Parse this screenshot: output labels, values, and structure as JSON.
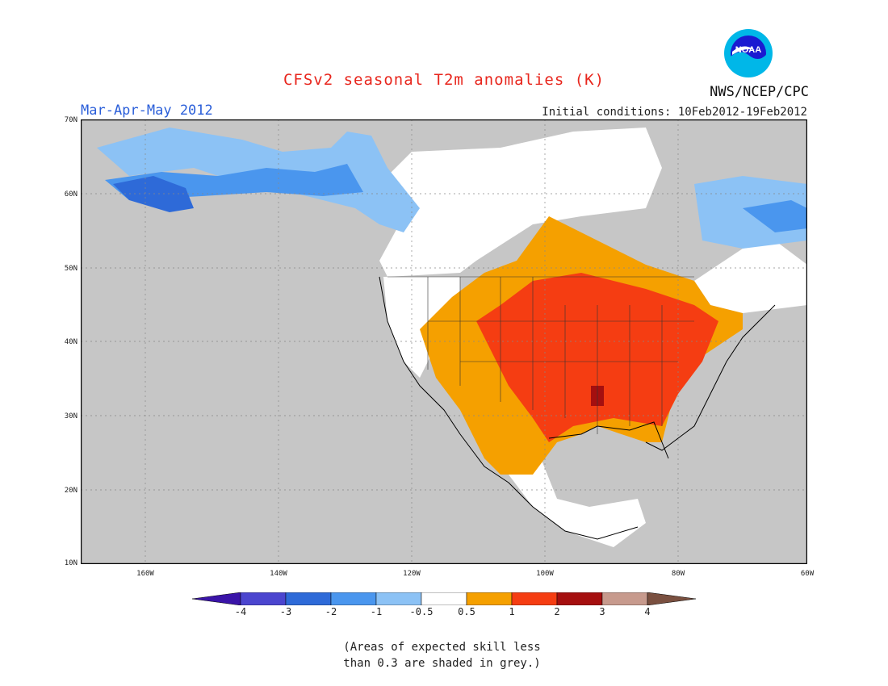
{
  "title": "CFSv2 seasonal T2m anomalies (K)",
  "agency": "NWS/NCEP/CPC",
  "logo_text": "NOAA",
  "season": "Mar-Apr-May 2012",
  "initial_conditions": "Initial conditions: 10Feb2012-19Feb2012",
  "lat_labels": [
    "70N",
    "60N",
    "50N",
    "40N",
    "30N",
    "20N",
    "10N"
  ],
  "lon_labels": [
    "160W",
    "140W",
    "120W",
    "100W",
    "80W",
    "60W"
  ],
  "colorbar_labels": [
    "-4",
    "-3",
    "-2",
    "-1",
    "-0.5",
    "0.5",
    "1",
    "2",
    "3",
    "4"
  ],
  "footnote": [
    "(Areas of expected skill less",
    "than 0.3 are shaded in grey.)"
  ],
  "colors": {
    "le_-4": "#3a14a8",
    "m4_m3": "#4b45cf",
    "m3_m2": "#2e6ad8",
    "m2_m1": "#4a96ee",
    "m1_m05": "#8cc2f5",
    "neutral": "#ffffff",
    "p05_1": "#f5a000",
    "p1_2": "#f53d12",
    "p2_3": "#a50f0f",
    "p3_4": "#c79a8d",
    "ge_4": "#7a5040",
    "grey": "#c6c6c6"
  }
}
